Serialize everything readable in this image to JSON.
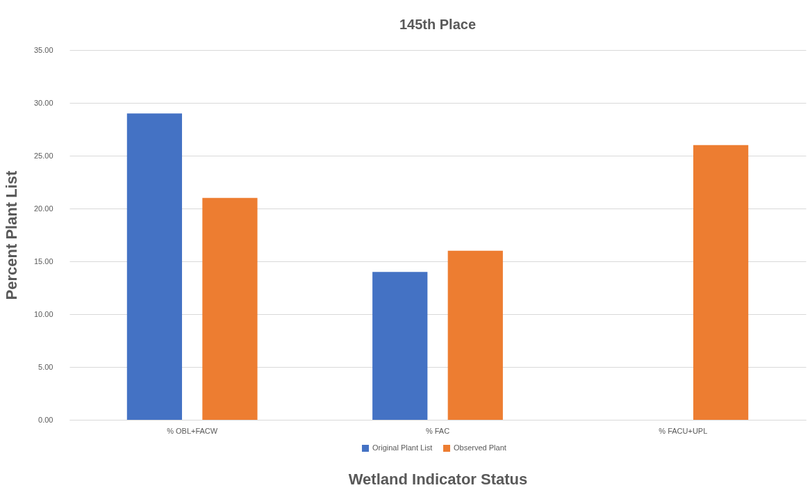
{
  "chart_data": {
    "type": "bar",
    "title": "145th Place",
    "xlabel": "Wetland Indicator Status",
    "ylabel": "Percent Plant List",
    "categories": [
      "% OBL+FACW",
      "% FAC",
      "% FACU+UPL"
    ],
    "series": [
      {
        "name": "Original Plant List",
        "color": "#4472c4",
        "values": [
          29,
          14,
          0
        ]
      },
      {
        "name": "Observed Plant",
        "color": "#ed7d31",
        "values": [
          21,
          16,
          26
        ]
      }
    ],
    "ylim": [
      0,
      35
    ],
    "yticks": [
      {
        "value": 0,
        "label": "0.00"
      },
      {
        "value": 5,
        "label": "5.00"
      },
      {
        "value": 10,
        "label": "10.00"
      },
      {
        "value": 15,
        "label": "15.00"
      },
      {
        "value": 20,
        "label": "20.00"
      },
      {
        "value": 25,
        "label": "25.00"
      },
      {
        "value": 30,
        "label": "30.00"
      },
      {
        "value": 35,
        "label": "35.00"
      }
    ],
    "grid": "y",
    "legend": "bottom"
  }
}
